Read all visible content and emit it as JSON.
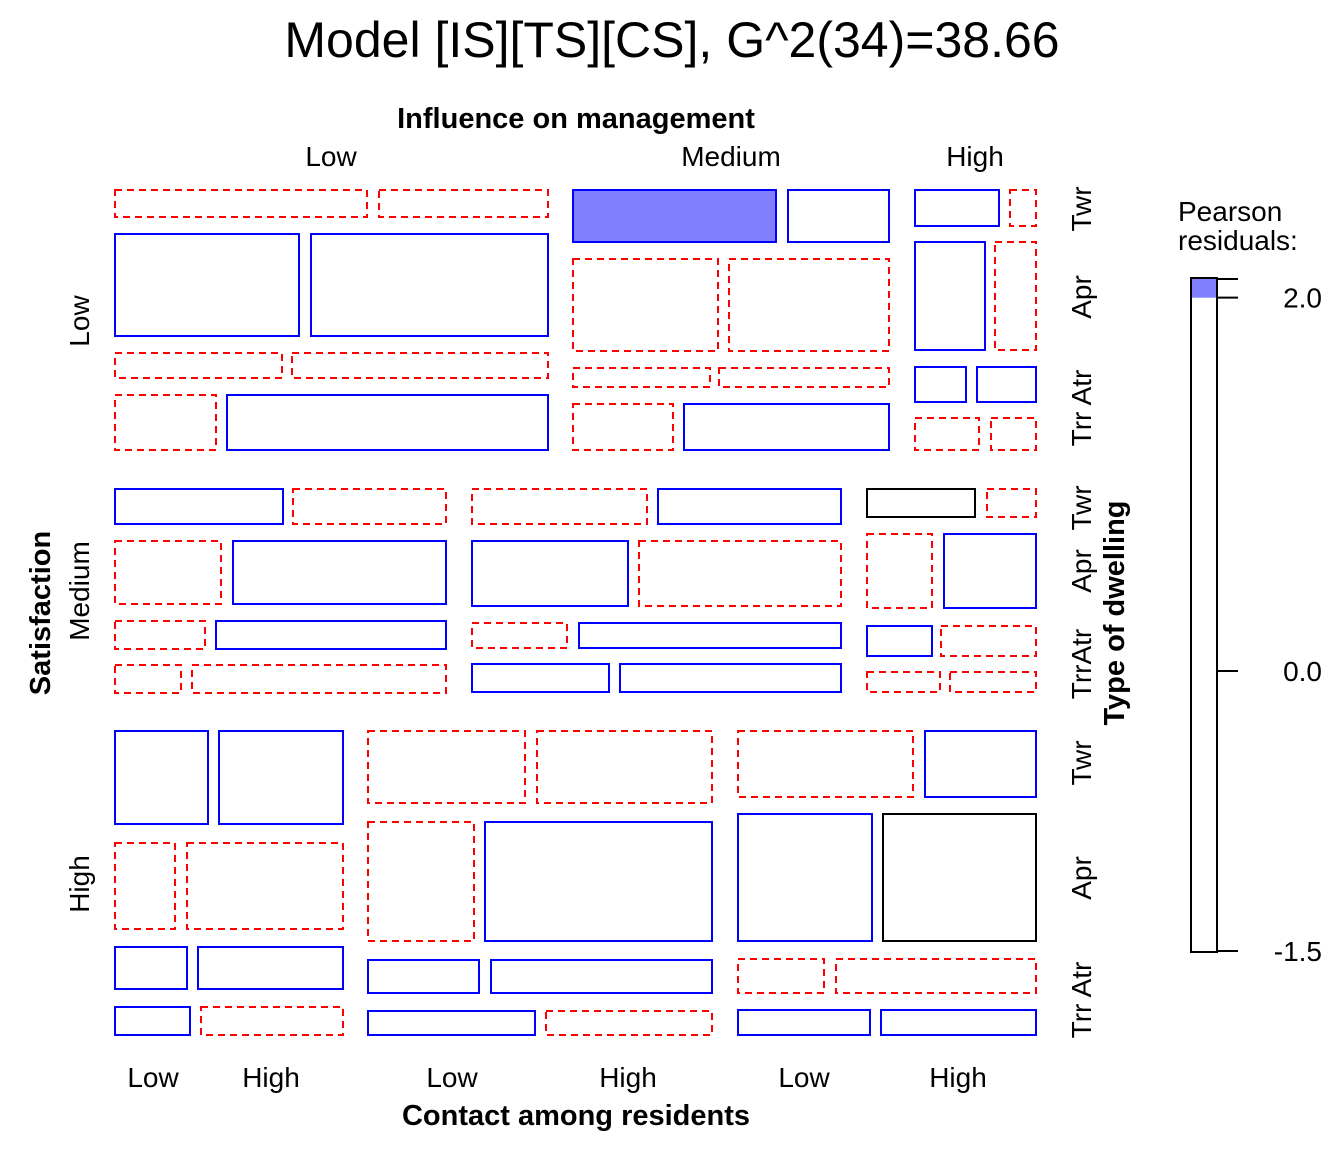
{
  "chart_data": {
    "type": "mosaic",
    "title": "Model [IS][TS][CS], G^2(34)=38.66",
    "top_axis_label": "Influence on management",
    "top_levels": [
      "Low",
      "Medium",
      "High"
    ],
    "left_axis_label": "Satisfaction",
    "left_levels": [
      "Low",
      "Medium",
      "High"
    ],
    "right_axis_label": "Type of dwelling",
    "bottom_axis_label": "Contact among residents",
    "bottom_levels": [
      "Low",
      "High",
      "Low",
      "High",
      "Low",
      "High"
    ],
    "type_labels": {
      "Low": [
        "Twr",
        "Apr",
        "Trr Atr"
      ],
      "Medium": [
        "Twr",
        "Apr",
        "TrrAtr"
      ],
      "High": [
        "Twr",
        "Apr",
        "Trr Atr"
      ]
    },
    "legend": {
      "title": "Pearson residuals:",
      "ticks": [
        "2.0",
        "0.0",
        "-1.5"
      ],
      "tick_values": [
        2.0,
        0.0,
        -1.5
      ],
      "max": 2.1,
      "min": -1.5,
      "fill_threshold": 2.0,
      "fill_color": "#8080ff"
    },
    "colors": {
      "positive": "#0000ff",
      "negative": "#ff0000",
      "neutral": "#000000",
      "fill": "#8080ff"
    },
    "cells": [
      {
        "satisfaction": "Low",
        "influence": "Low",
        "type": "Twr",
        "contact": "Low",
        "sign": "neg",
        "proportion": 0.06
      },
      {
        "satisfaction": "Low",
        "influence": "Low",
        "type": "Twr",
        "contact": "High",
        "sign": "neg",
        "proportion": 0.04
      },
      {
        "satisfaction": "Low",
        "influence": "Low",
        "type": "Apr",
        "contact": "Low",
        "sign": "pos",
        "proportion": 0.22
      },
      {
        "satisfaction": "Low",
        "influence": "Low",
        "type": "Apr",
        "contact": "High",
        "sign": "pos",
        "proportion": 0.29
      },
      {
        "satisfaction": "Low",
        "influence": "Low",
        "type": "Trr Atr",
        "contact": "Low",
        "sign": "neg",
        "proportion": 0.04
      },
      {
        "satisfaction": "Low",
        "influence": "Low",
        "type": "Trr Atr",
        "contact": "High",
        "sign": "neg",
        "proportion": 0.06
      },
      {
        "satisfaction": "Low",
        "influence": "Low",
        "type": "Trr Atr",
        "contact": "Low",
        "sign": "neg",
        "proportion": 0.07
      },
      {
        "satisfaction": "Low",
        "influence": "Low",
        "type": "Trr Atr",
        "contact": "High",
        "sign": "pos",
        "proportion": 0.22
      },
      {
        "satisfaction": "Low",
        "influence": "Medium",
        "type": "Twr",
        "contact": "Low",
        "sign": "pos-fill",
        "proportion": 0.11
      },
      {
        "satisfaction": "Low",
        "influence": "Medium",
        "type": "Twr",
        "contact": "High",
        "sign": "pos",
        "proportion": 0.05
      },
      {
        "satisfaction": "Low",
        "influence": "Medium",
        "type": "Apr",
        "contact": "Low",
        "sign": "neg",
        "proportion": 0.14
      },
      {
        "satisfaction": "Low",
        "influence": "Medium",
        "type": "Apr",
        "contact": "High",
        "sign": "neg",
        "proportion": 0.15
      },
      {
        "satisfaction": "Low",
        "influence": "Medium",
        "type": "Trr Atr",
        "contact": "Low",
        "sign": "neg",
        "proportion": 0.03
      },
      {
        "satisfaction": "Low",
        "influence": "Medium",
        "type": "Trr Atr",
        "contact": "High",
        "sign": "neg",
        "proportion": 0.04
      },
      {
        "satisfaction": "Low",
        "influence": "Medium",
        "type": "Trr Atr",
        "contact": "Low",
        "sign": "neg",
        "proportion": 0.05
      },
      {
        "satisfaction": "Low",
        "influence": "Medium",
        "type": "Trr Atr",
        "contact": "High",
        "sign": "pos",
        "proportion": 0.11
      },
      {
        "satisfaction": "Low",
        "influence": "High",
        "type": "Twr",
        "contact": "Low",
        "sign": "pos",
        "proportion": 0.03
      },
      {
        "satisfaction": "Low",
        "influence": "High",
        "type": "Twr",
        "contact": "High",
        "sign": "neg",
        "proportion": 0.01
      },
      {
        "satisfaction": "Low",
        "influence": "High",
        "type": "Apr",
        "contact": "Low",
        "sign": "pos",
        "proportion": 0.07
      },
      {
        "satisfaction": "Low",
        "influence": "High",
        "type": "Apr",
        "contact": "High",
        "sign": "neg",
        "proportion": 0.05
      },
      {
        "satisfaction": "Low",
        "influence": "High",
        "type": "Trr Atr",
        "contact": "Low",
        "sign": "pos",
        "proportion": 0.02
      },
      {
        "satisfaction": "Low",
        "influence": "High",
        "type": "Trr Atr",
        "contact": "High",
        "sign": "pos",
        "proportion": 0.02
      },
      {
        "satisfaction": "Low",
        "influence": "High",
        "type": "Trr Atr",
        "contact": "Low",
        "sign": "neg",
        "proportion": 0.02
      },
      {
        "satisfaction": "Low",
        "influence": "High",
        "type": "Trr Atr",
        "contact": "High",
        "sign": "neg",
        "proportion": 0.01
      }
    ]
  }
}
